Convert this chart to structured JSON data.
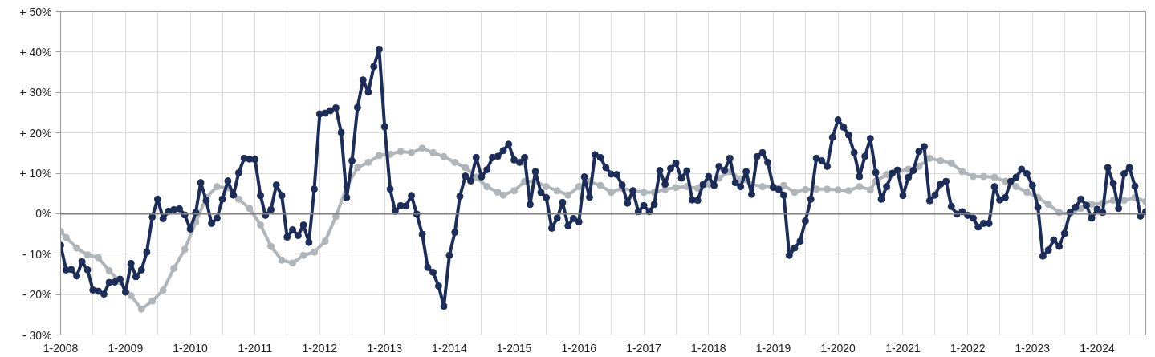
{
  "chart_data": {
    "type": "line",
    "marker": "circle",
    "line_style": "solid",
    "grid": true,
    "x": [
      "2008-01",
      "2008-02",
      "2008-03",
      "2008-04",
      "2008-05",
      "2008-06",
      "2008-07",
      "2008-08",
      "2008-09",
      "2008-10",
      "2008-11",
      "2008-12",
      "2009-01",
      "2009-02",
      "2009-03",
      "2009-04",
      "2009-05",
      "2009-06",
      "2009-07",
      "2009-08",
      "2009-09",
      "2009-10",
      "2009-11",
      "2009-12",
      "2010-01",
      "2010-02",
      "2010-03",
      "2010-04",
      "2010-05",
      "2010-06",
      "2010-07",
      "2010-08",
      "2010-09",
      "2010-10",
      "2010-11",
      "2010-12",
      "2011-01",
      "2011-02",
      "2011-03",
      "2011-04",
      "2011-05",
      "2011-06",
      "2011-07",
      "2011-08",
      "2011-09",
      "2011-10",
      "2011-11",
      "2011-12",
      "2012-01",
      "2012-02",
      "2012-03",
      "2012-04",
      "2012-05",
      "2012-06",
      "2012-07",
      "2012-08",
      "2012-09",
      "2012-10",
      "2012-11",
      "2012-12",
      "2013-01",
      "2013-02",
      "2013-03",
      "2013-04",
      "2013-05",
      "2013-06",
      "2013-07",
      "2013-08",
      "2013-09",
      "2013-10",
      "2013-11",
      "2013-12",
      "2014-01",
      "2014-02",
      "2014-03",
      "2014-04",
      "2014-05",
      "2014-06",
      "2014-07",
      "2014-08",
      "2014-09",
      "2014-10",
      "2014-11",
      "2014-12",
      "2015-01",
      "2015-02",
      "2015-03",
      "2015-04",
      "2015-05",
      "2015-06",
      "2015-07",
      "2015-08",
      "2015-09",
      "2015-10",
      "2015-11",
      "2015-12",
      "2016-01",
      "2016-02",
      "2016-03",
      "2016-04",
      "2016-05",
      "2016-06",
      "2016-07",
      "2016-08",
      "2016-09",
      "2016-10",
      "2016-11",
      "2016-12",
      "2017-01",
      "2017-02",
      "2017-03",
      "2017-04",
      "2017-05",
      "2017-06",
      "2017-07",
      "2017-08",
      "2017-09",
      "2017-10",
      "2017-11",
      "2017-12",
      "2018-01",
      "2018-02",
      "2018-03",
      "2018-04",
      "2018-05",
      "2018-06",
      "2018-07",
      "2018-08",
      "2018-09",
      "2018-10",
      "2018-11",
      "2018-12",
      "2019-01",
      "2019-02",
      "2019-03",
      "2019-04",
      "2019-05",
      "2019-06",
      "2019-07",
      "2019-08",
      "2019-09",
      "2019-10",
      "2019-11",
      "2019-12",
      "2020-01",
      "2020-02",
      "2020-03",
      "2020-04",
      "2020-05",
      "2020-06",
      "2020-07",
      "2020-08",
      "2020-09",
      "2020-10",
      "2020-11",
      "2020-12",
      "2021-01",
      "2021-02",
      "2021-03",
      "2021-04",
      "2021-05",
      "2021-06",
      "2021-07",
      "2021-08",
      "2021-09",
      "2021-10",
      "2021-11",
      "2021-12",
      "2022-01",
      "2022-02",
      "2022-03",
      "2022-04",
      "2022-05",
      "2022-06",
      "2022-07",
      "2022-08",
      "2022-09",
      "2022-10",
      "2022-11",
      "2022-12",
      "2023-01",
      "2023-02",
      "2023-03",
      "2023-04",
      "2023-05",
      "2023-06",
      "2023-07",
      "2023-08",
      "2023-09",
      "2023-10",
      "2023-11",
      "2023-12",
      "2024-01",
      "2024-02",
      "2024-03",
      "2024-04",
      "2024-05",
      "2024-06",
      "2024-07",
      "2024-08",
      "2024-09",
      "2024-10"
    ],
    "series": [
      {
        "color": "#b0b5ba",
        "x": [
          "2008-01",
          "2008-02",
          "2008-04",
          "2008-06",
          "2008-08",
          "2008-10",
          "2008-12",
          "2009-02",
          "2009-04",
          "2009-06",
          "2009-08",
          "2009-10",
          "2009-12",
          "2010-02",
          "2010-04",
          "2010-06",
          "2010-08",
          "2010-10",
          "2010-12",
          "2011-02",
          "2011-04",
          "2011-06",
          "2011-08",
          "2011-10",
          "2011-12",
          "2012-02",
          "2012-04",
          "2012-06",
          "2012-08",
          "2012-10",
          "2012-12",
          "2013-02",
          "2013-04",
          "2013-06",
          "2013-08",
          "2013-10",
          "2013-12",
          "2014-02",
          "2014-04",
          "2014-06",
          "2014-08",
          "2014-10",
          "2014-11",
          "2015-01",
          "2015-03",
          "2015-05",
          "2015-07",
          "2015-09",
          "2015-11",
          "2016-01",
          "2016-03",
          "2016-05",
          "2016-07",
          "2016-09",
          "2016-11",
          "2017-01",
          "2017-03",
          "2017-05",
          "2017-07",
          "2017-09",
          "2017-11",
          "2018-01",
          "2018-03",
          "2018-05",
          "2018-07",
          "2018-09",
          "2018-11",
          "2019-01",
          "2019-03",
          "2019-05",
          "2019-07",
          "2019-09",
          "2019-11",
          "2020-01",
          "2020-03",
          "2020-05",
          "2020-07",
          "2020-08",
          "2020-10",
          "2020-12",
          "2021-02",
          "2021-04",
          "2021-06",
          "2021-08",
          "2021-10",
          "2021-12",
          "2022-02",
          "2022-04",
          "2022-06",
          "2022-08",
          "2022-10",
          "2022-12",
          "2023-02",
          "2023-04",
          "2023-06",
          "2023-08",
          "2023-10",
          "2023-12",
          "2024-02",
          "2024-04",
          "2024-06",
          "2024-08",
          "2024-10"
        ],
        "values": [
          -4.4,
          -5.9,
          -8.5,
          -10.2,
          -10.9,
          -14.1,
          -16.8,
          -20.3,
          -23.6,
          -21.6,
          -18.9,
          -13.5,
          -8.8,
          -2.1,
          4.0,
          6.7,
          6.4,
          3.6,
          1.3,
          -2.8,
          -8.1,
          -11.5,
          -12.2,
          -10.3,
          -9.5,
          -6.8,
          -0.7,
          6.7,
          11.4,
          12.7,
          14.4,
          14.7,
          15.4,
          15.1,
          16.2,
          15.1,
          14.1,
          12.7,
          11.4,
          9.0,
          6.7,
          5.3,
          4.6,
          5.7,
          8.0,
          8.0,
          6.7,
          5.7,
          4.6,
          6.7,
          8.0,
          7.0,
          5.3,
          6.3,
          5.7,
          5.3,
          5.3,
          6.0,
          6.5,
          6.7,
          6.3,
          7.3,
          8.8,
          10.4,
          8.6,
          7.3,
          6.7,
          6.7,
          7.0,
          5.3,
          6.0,
          6.1,
          6.1,
          5.9,
          5.7,
          6.7,
          5.9,
          8.0,
          9.7,
          10.4,
          11.0,
          11.7,
          13.7,
          13.1,
          12.5,
          10.4,
          9.2,
          9.2,
          9.0,
          8.0,
          6.7,
          5.3,
          4.0,
          2.3,
          0.3,
          0.0,
          1.3,
          2.3,
          2.6,
          3.3,
          3.3,
          4.0,
          3.0
        ]
      },
      {
        "color": "#1c2d5a",
        "values": [
          -7.8,
          -13.9,
          -13.8,
          -15.4,
          -11.9,
          -13.9,
          -18.9,
          -19.2,
          -19.9,
          -17.0,
          -16.9,
          -16.2,
          -19.4,
          -12.3,
          -15.6,
          -13.9,
          -9.5,
          -0.8,
          3.6,
          -1.2,
          0.6,
          1.0,
          1.2,
          -0.3,
          -3.8,
          0.3,
          7.7,
          3.3,
          -2.4,
          -1.1,
          3.6,
          8.1,
          4.6,
          10.1,
          13.7,
          13.5,
          13.4,
          4.5,
          -0.4,
          1.0,
          7.1,
          4.5,
          -5.8,
          -4.0,
          -5.4,
          -2.8,
          -7.1,
          6.1,
          24.7,
          24.9,
          25.5,
          26.2,
          20.1,
          4.0,
          13.1,
          26.3,
          33.1,
          30.1,
          36.4,
          40.7,
          21.5,
          6.1,
          0.6,
          2.0,
          1.9,
          4.5,
          -0.1,
          -5.1,
          -13.3,
          -14.5,
          -17.9,
          -22.9,
          -10.3,
          -4.6,
          4.3,
          9.3,
          8.1,
          13.9,
          9.1,
          10.9,
          13.9,
          14.2,
          15.6,
          17.2,
          13.3,
          12.7,
          13.9,
          2.3,
          10.4,
          5.3,
          4.0,
          -3.6,
          -1.1,
          2.8,
          -3.0,
          -1.2,
          -2.0,
          9.1,
          4.1,
          14.6,
          13.9,
          11.4,
          9.8,
          9.7,
          7.1,
          2.6,
          5.7,
          0.5,
          2.0,
          0.5,
          2.3,
          10.7,
          7.3,
          11.2,
          12.5,
          8.8,
          10.6,
          3.4,
          3.3,
          7.2,
          9.2,
          7.0,
          11.7,
          10.7,
          13.7,
          7.7,
          6.7,
          10.4,
          4.8,
          14.1,
          15.1,
          12.7,
          6.5,
          6.0,
          4.6,
          -10.3,
          -8.5,
          -6.8,
          -1.8,
          3.6,
          13.7,
          13.1,
          11.7,
          18.9,
          23.2,
          21.4,
          19.5,
          15.1,
          9.2,
          14.2,
          18.6,
          10.2,
          3.6,
          6.7,
          10.0,
          10.8,
          4.5,
          9.0,
          10.7,
          15.4,
          16.6,
          3.2,
          4.6,
          7.3,
          8.0,
          1.8,
          -0.1,
          0.5,
          -0.4,
          -1.1,
          -3.3,
          -2.4,
          -2.4,
          6.7,
          3.4,
          4.0,
          8.0,
          9.0,
          11.0,
          9.9,
          7.0,
          1.6,
          -10.5,
          -9.0,
          -6.5,
          -8.1,
          -4.9,
          0.3,
          1.6,
          3.6,
          2.1,
          -1.1,
          1.1,
          0.3,
          11.4,
          7.5,
          1.3,
          9.9,
          11.4,
          6.8,
          -0.6,
          0.5
        ]
      }
    ],
    "xlim": [
      "2008-01",
      "2024-10"
    ],
    "xticks": [
      {
        "value": "2008-01",
        "label": "1-2008"
      },
      {
        "value": "2008-07",
        "label": null
      },
      {
        "value": "2009-01",
        "label": "1-2009"
      },
      {
        "value": "2009-07",
        "label": null
      },
      {
        "value": "2010-01",
        "label": "1-2010"
      },
      {
        "value": "2010-07",
        "label": null
      },
      {
        "value": "2011-01",
        "label": "1-2011"
      },
      {
        "value": "2011-07",
        "label": null
      },
      {
        "value": "2012-01",
        "label": "1-2012"
      },
      {
        "value": "2012-07",
        "label": null
      },
      {
        "value": "2013-01",
        "label": "1-2013"
      },
      {
        "value": "2013-07",
        "label": null
      },
      {
        "value": "2014-01",
        "label": "1-2014"
      },
      {
        "value": "2014-07",
        "label": null
      },
      {
        "value": "2015-01",
        "label": "1-2015"
      },
      {
        "value": "2015-07",
        "label": null
      },
      {
        "value": "2016-01",
        "label": "1-2016"
      },
      {
        "value": "2016-07",
        "label": null
      },
      {
        "value": "2017-01",
        "label": "1-2017"
      },
      {
        "value": "2017-07",
        "label": null
      },
      {
        "value": "2018-01",
        "label": "1-2018"
      },
      {
        "value": "2018-07",
        "label": null
      },
      {
        "value": "2019-01",
        "label": "1-2019"
      },
      {
        "value": "2019-07",
        "label": null
      },
      {
        "value": "2020-01",
        "label": "1-2020"
      },
      {
        "value": "2020-07",
        "label": null
      },
      {
        "value": "2021-01",
        "label": "1-2021"
      },
      {
        "value": "2021-07",
        "label": null
      },
      {
        "value": "2022-01",
        "label": "1-2022"
      },
      {
        "value": "2022-07",
        "label": null
      },
      {
        "value": "2023-01",
        "label": "1-2023"
      },
      {
        "value": "2023-07",
        "label": null
      },
      {
        "value": "2024-01",
        "label": "1-2024"
      },
      {
        "value": "2024-07",
        "label": null
      }
    ],
    "ylim": [
      -30,
      50
    ],
    "yticks": [
      {
        "value": -30,
        "label": "- 30%"
      },
      {
        "value": -20,
        "label": "- 20%"
      },
      {
        "value": -10,
        "label": "- 10%"
      },
      {
        "value": 0,
        "label": "0%"
      },
      {
        "value": 10,
        "label": "+ 10%"
      },
      {
        "value": 20,
        "label": "+ 20%"
      },
      {
        "value": 30,
        "label": "+ 30%"
      },
      {
        "value": 40,
        "label": "+ 40%"
      },
      {
        "value": 50,
        "label": "+ 50%"
      }
    ],
    "ref_lines": [
      {
        "axis": "y",
        "value": 0,
        "color": "#808080"
      }
    ]
  }
}
